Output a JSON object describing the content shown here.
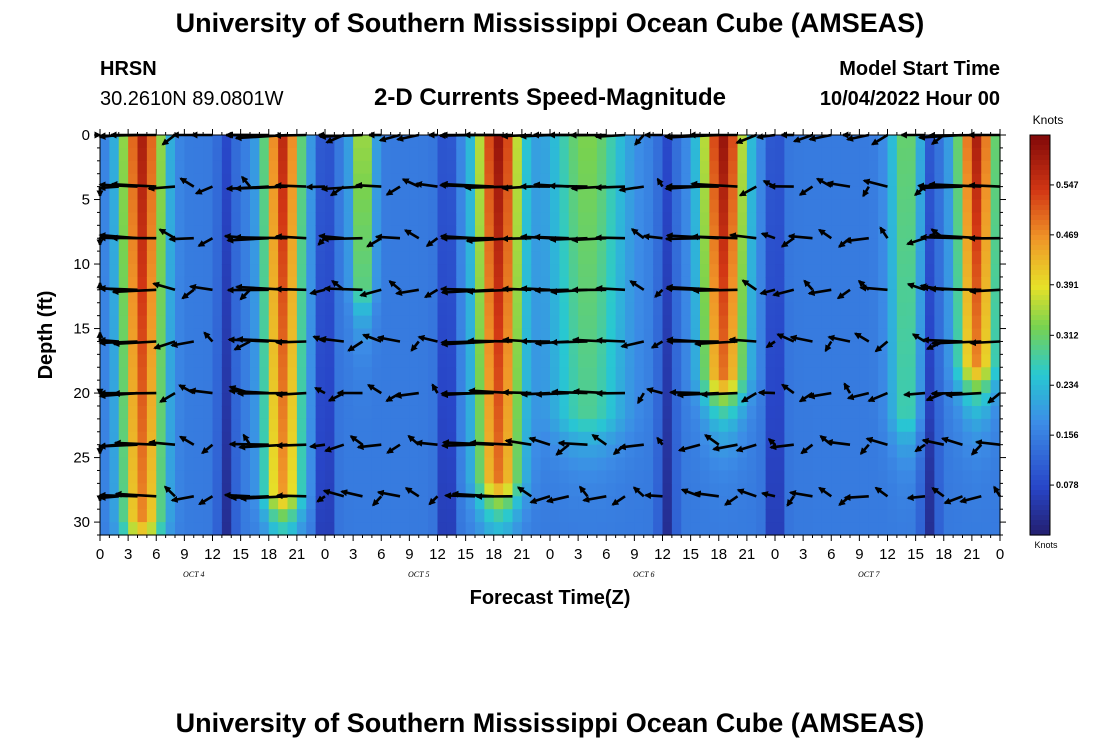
{
  "header": {
    "title": "University of Southern Mississippi Ocean Cube (AMSEAS)",
    "station": "HRSN",
    "coords": "30.2610N  89.0801W",
    "subtitle": "2-D Currents Speed-Magnitude",
    "model_start_label": "Model Start Time",
    "model_start_value": "10/04/2022 Hour 00"
  },
  "footer": {
    "title": "University of Southern Mississippi Ocean Cube (AMSEAS)"
  },
  "chart_data": {
    "type": "heatmap",
    "title": "2-D Currents Speed-Magnitude",
    "xlabel": "Forecast Time(Z)",
    "ylabel": "Depth (ft)",
    "x_ticks": [
      "0",
      "3",
      "6",
      "9",
      "12",
      "15",
      "18",
      "21",
      "0",
      "3",
      "6",
      "9",
      "12",
      "15",
      "18",
      "21",
      "0",
      "3",
      "6",
      "9",
      "12",
      "15",
      "18",
      "21",
      "0",
      "3",
      "6",
      "9",
      "12",
      "15",
      "18",
      "21",
      "0"
    ],
    "x_hours_range": [
      0,
      96
    ],
    "day_labels": [
      {
        "label": "OCT 4",
        "hour": 10
      },
      {
        "label": "OCT 5",
        "hour": 34
      },
      {
        "label": "OCT 6",
        "hour": 58
      },
      {
        "label": "OCT 7",
        "hour": 82
      }
    ],
    "y_ticks": [
      "0",
      "5",
      "10",
      "15",
      "20",
      "25",
      "30"
    ],
    "ylim_ft": [
      0,
      31
    ],
    "colorbar": {
      "unit": "Knots",
      "labels": [
        "0.547",
        "0.469",
        "0.391",
        "0.312",
        "0.234",
        "0.156",
        "0.078"
      ],
      "range": [
        0.0,
        0.625
      ]
    },
    "speed_bands": [
      {
        "center": 4.5,
        "width": 2.2,
        "peak": 0.58,
        "bottom_ft": 30
      },
      {
        "center": 19.5,
        "width": 2.0,
        "peak": 0.56,
        "bottom_ft": 28
      },
      {
        "center": 28.0,
        "width": 1.2,
        "peak": 0.38,
        "bottom_ft": 12
      },
      {
        "center": 42.5,
        "width": 2.3,
        "peak": 0.6,
        "bottom_ft": 27
      },
      {
        "center": 52.0,
        "width": 4.0,
        "peak": 0.33,
        "bottom_ft": 22
      },
      {
        "center": 66.5,
        "width": 2.3,
        "peak": 0.6,
        "bottom_ft": 19
      },
      {
        "center": 86.0,
        "width": 1.8,
        "peak": 0.32,
        "bottom_ft": 22
      },
      {
        "center": 93.5,
        "width": 2.0,
        "peak": 0.58,
        "bottom_ft": 18
      }
    ],
    "slack_times": [
      13.5,
      24.0,
      37.0,
      60.5,
      72.0,
      88.5
    ],
    "vector_depths_ft": [
      0,
      4,
      8,
      12,
      16,
      20,
      24,
      28
    ],
    "vector_hours": [
      0,
      2,
      4,
      6,
      8,
      10,
      12,
      16,
      18,
      20,
      22,
      24,
      26,
      28,
      30,
      32,
      34,
      36,
      40,
      42,
      44,
      46,
      48,
      50,
      52,
      54,
      56,
      58,
      60,
      64,
      66,
      68,
      70,
      72,
      74,
      76,
      78,
      80,
      82,
      84,
      88,
      90,
      92,
      94,
      96
    ]
  }
}
